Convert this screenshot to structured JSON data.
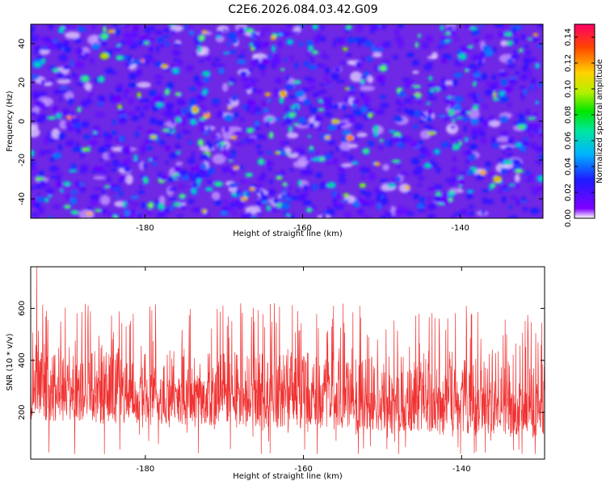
{
  "title": "C2E6.2026.084.03.42.G09",
  "chart_data": [
    {
      "type": "heatmap",
      "name": "spectrogram",
      "xlabel": "Height of straight line (km)",
      "ylabel": "Frequency (Hz)",
      "xlim": [
        -194.5,
        -129.5
      ],
      "ylim": [
        -50,
        50
      ],
      "xticks": [
        -180,
        -160,
        -140
      ],
      "yticks": [
        -40,
        -20,
        0,
        20,
        40
      ],
      "colorbar": {
        "label": "Normalized spectral amplitude",
        "range": [
          0,
          0.15
        ],
        "ticks": [
          0.0,
          0.02,
          0.04,
          0.06,
          0.08,
          0.1,
          0.12,
          0.14
        ],
        "tick_labels": [
          "0.00",
          "0.02",
          "0.04",
          "0.06",
          "0.08",
          "0.10",
          "0.12",
          "0.14"
        ]
      },
      "description_values": {
        "typical_amplitude_range": [
          0.01,
          0.05
        ],
        "max_amplitude": 0.14
      }
    },
    {
      "type": "line",
      "name": "snr-trace",
      "xlabel": "Height of straight line (km)",
      "ylabel": "SNR (10 * v/v)",
      "xlim": [
        -194.5,
        -129.5
      ],
      "ylim": [
        20,
        760
      ],
      "xticks": [
        -180,
        -160,
        -140
      ],
      "yticks": [
        200,
        400,
        600
      ],
      "color": "#f03232",
      "summary": {
        "num_samples": 1800,
        "baseline_start": 260,
        "baseline_end": 200,
        "typical_min": 60,
        "typical_max": 620,
        "peak": 760
      }
    }
  ]
}
